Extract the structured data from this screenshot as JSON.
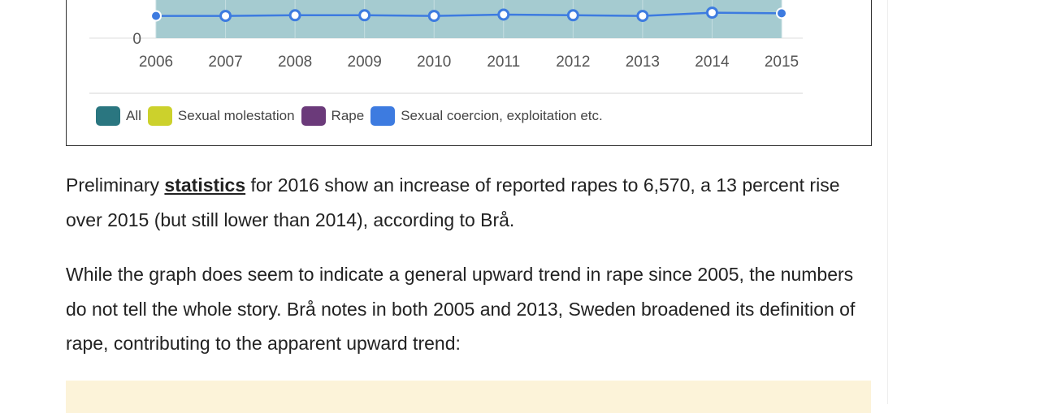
{
  "chart_data": {
    "type": "area",
    "x": [
      "2006",
      "2007",
      "2008",
      "2009",
      "2010",
      "2011",
      "2012",
      "2013",
      "2014",
      "2015"
    ],
    "y_tick_labels": [
      "0"
    ],
    "series": [
      {
        "name": "All",
        "color": "#2a7680"
      },
      {
        "name": "Sexual molestation",
        "color": "#ccd12c"
      },
      {
        "name": "Rape",
        "color": "#6b3a7a"
      },
      {
        "name": "Sexual coercion, exploitation etc.",
        "color": "#3d7be0"
      }
    ],
    "visible_line": {
      "series": "Sexual coercion, exploitation etc.",
      "color": "#3d7be0",
      "values_relative": [
        0.98,
        0.98,
        0.99,
        0.99,
        0.98,
        1.0,
        0.99,
        0.98,
        1.03,
        1.02
      ]
    },
    "area_fill_color": "#a5cbd0",
    "grid": true,
    "legend_position": "bottom-left"
  },
  "article": {
    "p1_before": "Preliminary ",
    "p1_link": "statistics",
    "p1_after": " for 2016 show an increase of reported rapes to 6,570, a 13 percent rise over 2015 (but still lower than 2014), according to Brå.",
    "p2": "While the graph does seem to indicate a general upward trend in rape since 2005, the numbers do not tell the whole story. Brå notes in both 2005 and 2013, Sweden broadened its definition of rape, contributing to the apparent upward trend:"
  }
}
